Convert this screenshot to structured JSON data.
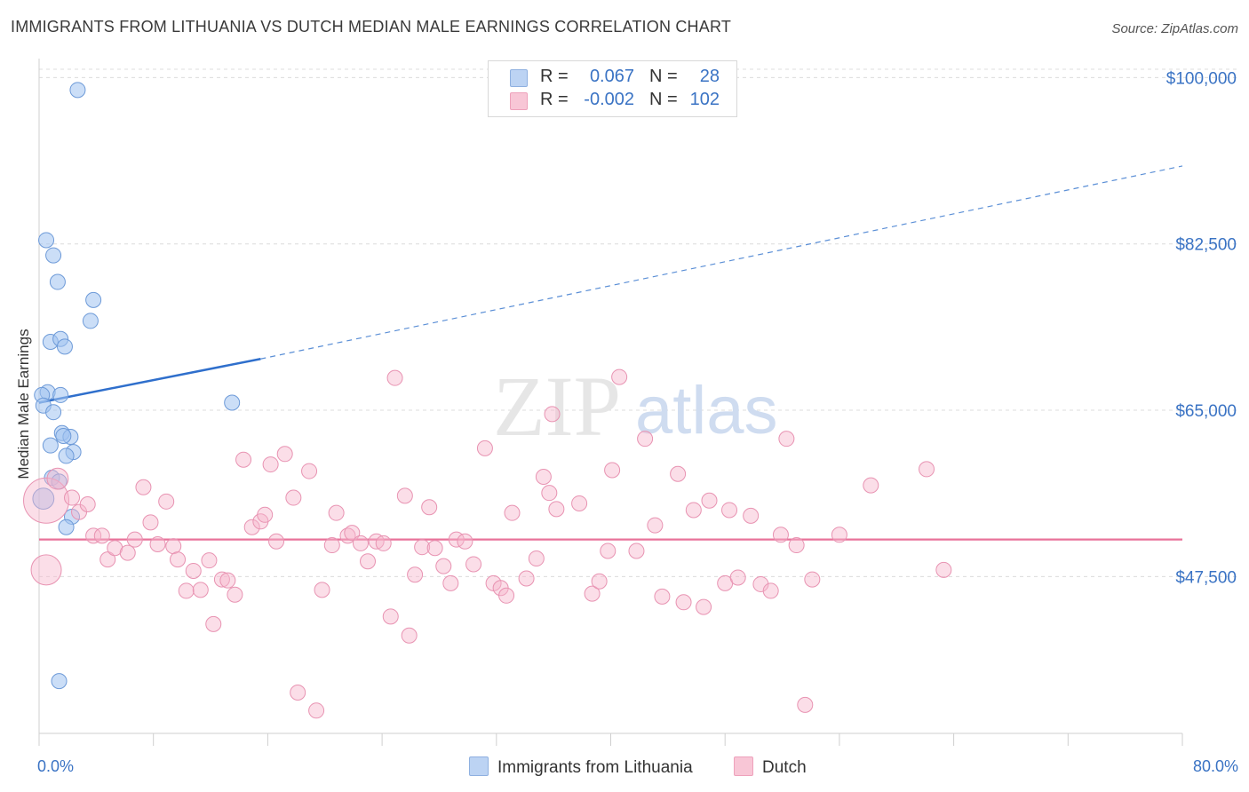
{
  "title": "IMMIGRANTS FROM LITHUANIA VS DUTCH MEDIAN MALE EARNINGS CORRELATION CHART",
  "source": "Source: ZipAtlas.com",
  "watermark": {
    "zip": "ZIP",
    "atlas": "atlas"
  },
  "legend": {
    "rows": [
      {
        "r_label": "R =",
        "r_value": "0.067",
        "n_label": "N =",
        "n_value": "28",
        "color": "#5b8fd6"
      },
      {
        "r_label": "R =",
        "r_value": "-0.002",
        "n_label": "N =",
        "n_value": "102",
        "color": "#e87aa0"
      }
    ]
  },
  "bottom_legend": [
    {
      "label": "Immigrants from Lithuania",
      "color": "#5b8fd6"
    },
    {
      "label": "Dutch",
      "color": "#e87aa0"
    }
  ],
  "chart_data": {
    "type": "scatter",
    "title": "IMMIGRANTS FROM LITHUANIA VS DUTCH MEDIAN MALE EARNINGS CORRELATION CHART",
    "xlabel": "",
    "ylabel": "Median Male Earnings",
    "xlim": [
      0,
      80
    ],
    "ylim": [
      31000,
      102000
    ],
    "x_tick_labels": [
      "0.0%",
      "80.0%"
    ],
    "y_ticks": [
      47500,
      65000,
      82500,
      100000
    ],
    "y_tick_labels": [
      "$47,500",
      "$65,000",
      "$82,500",
      "$100,000"
    ],
    "grid": true,
    "legend_position": "top-center",
    "series": [
      {
        "name": "Immigrants from Lithuania",
        "color": "#5b8fd6",
        "trend": {
          "x": [
            0,
            15.5
          ],
          "y": [
            65800,
            70400
          ],
          "dashed_extension_to": [
            80,
            90700
          ]
        },
        "points": [
          [
            2.7,
            98700,
            1
          ],
          [
            0.5,
            82900,
            1
          ],
          [
            1.0,
            81300,
            1
          ],
          [
            1.3,
            78500,
            1
          ],
          [
            3.8,
            76600,
            1
          ],
          [
            3.6,
            74400,
            1
          ],
          [
            0.8,
            72200,
            1
          ],
          [
            1.5,
            72500,
            1
          ],
          [
            1.8,
            71700,
            1
          ],
          [
            0.6,
            66900,
            1
          ],
          [
            1.5,
            66600,
            1
          ],
          [
            0.2,
            66600,
            1
          ],
          [
            0.3,
            65500,
            1
          ],
          [
            1.0,
            64800,
            1
          ],
          [
            13.5,
            65800,
            1
          ],
          [
            1.6,
            62600,
            1
          ],
          [
            2.2,
            62200,
            1
          ],
          [
            1.7,
            62300,
            1
          ],
          [
            0.8,
            61300,
            1
          ],
          [
            2.4,
            60600,
            1
          ],
          [
            1.9,
            60200,
            1
          ],
          [
            0.9,
            57900,
            1
          ],
          [
            1.4,
            57500,
            1
          ],
          [
            0.3,
            55700,
            1.4
          ],
          [
            2.3,
            53800,
            1
          ],
          [
            1.9,
            52700,
            1
          ],
          [
            1.4,
            36500,
            1
          ]
        ]
      },
      {
        "name": "Dutch",
        "color": "#e87aa0",
        "trend": {
          "x": [
            0,
            80
          ],
          "y": [
            51400,
            51400
          ]
        },
        "points": [
          [
            0.5,
            55500,
            3
          ],
          [
            0.5,
            48200,
            2
          ],
          [
            1.3,
            57800,
            1.4
          ],
          [
            2.3,
            55800,
            1
          ],
          [
            2.8,
            54300,
            1
          ],
          [
            3.4,
            55100,
            1
          ],
          [
            3.8,
            51800,
            1
          ],
          [
            4.4,
            51800,
            1
          ],
          [
            4.8,
            49300,
            1
          ],
          [
            5.3,
            50500,
            1
          ],
          [
            6.2,
            50000,
            1
          ],
          [
            6.7,
            51400,
            1
          ],
          [
            7.3,
            56900,
            1
          ],
          [
            7.8,
            53200,
            1
          ],
          [
            8.3,
            50900,
            1
          ],
          [
            8.9,
            55400,
            1
          ],
          [
            9.4,
            50700,
            1
          ],
          [
            9.7,
            49300,
            1
          ],
          [
            10.3,
            46000,
            1
          ],
          [
            10.8,
            48100,
            1
          ],
          [
            11.3,
            46100,
            1
          ],
          [
            11.9,
            49200,
            1
          ],
          [
            12.2,
            42500,
            1
          ],
          [
            12.8,
            47200,
            1
          ],
          [
            13.2,
            47100,
            1
          ],
          [
            13.7,
            45600,
            1
          ],
          [
            14.3,
            59800,
            1
          ],
          [
            14.9,
            52700,
            1
          ],
          [
            15.5,
            53300,
            1
          ],
          [
            15.8,
            54000,
            1
          ],
          [
            16.2,
            59300,
            1
          ],
          [
            16.6,
            51200,
            1
          ],
          [
            17.2,
            60400,
            1
          ],
          [
            17.8,
            55800,
            1
          ],
          [
            18.1,
            35300,
            1
          ],
          [
            18.9,
            58600,
            1
          ],
          [
            19.4,
            33400,
            1
          ],
          [
            19.8,
            46100,
            1
          ],
          [
            20.5,
            50800,
            1
          ],
          [
            20.8,
            54200,
            1
          ],
          [
            21.6,
            51800,
            1
          ],
          [
            21.9,
            52100,
            1
          ],
          [
            22.5,
            51000,
            1
          ],
          [
            23.0,
            49100,
            1
          ],
          [
            23.6,
            51200,
            1
          ],
          [
            24.1,
            51000,
            1
          ],
          [
            24.6,
            43300,
            1
          ],
          [
            24.9,
            68400,
            1
          ],
          [
            25.6,
            56000,
            1
          ],
          [
            25.9,
            41300,
            1
          ],
          [
            26.3,
            47700,
            1
          ],
          [
            26.8,
            50600,
            1
          ],
          [
            27.3,
            54800,
            1
          ],
          [
            27.7,
            50500,
            1
          ],
          [
            28.3,
            48600,
            1
          ],
          [
            28.8,
            46800,
            1
          ],
          [
            29.2,
            51400,
            1
          ],
          [
            29.8,
            51200,
            1
          ],
          [
            30.4,
            48800,
            1
          ],
          [
            31.2,
            61000,
            1
          ],
          [
            31.8,
            46800,
            1
          ],
          [
            32.3,
            46300,
            1
          ],
          [
            32.7,
            45500,
            1
          ],
          [
            33.1,
            54200,
            1
          ],
          [
            34.1,
            47300,
            1
          ],
          [
            34.8,
            49400,
            1
          ],
          [
            35.3,
            58000,
            1
          ],
          [
            35.7,
            56300,
            1
          ],
          [
            35.9,
            64600,
            1
          ],
          [
            36.2,
            54600,
            1
          ],
          [
            37.8,
            55200,
            1
          ],
          [
            38.7,
            45700,
            1
          ],
          [
            39.2,
            47000,
            1
          ],
          [
            39.8,
            50200,
            1
          ],
          [
            40.1,
            58700,
            1
          ],
          [
            40.6,
            68500,
            1
          ],
          [
            41.8,
            50200,
            1
          ],
          [
            42.4,
            62000,
            1
          ],
          [
            43.1,
            52900,
            1
          ],
          [
            43.6,
            45400,
            1
          ],
          [
            44.7,
            58300,
            1
          ],
          [
            45.1,
            44800,
            1
          ],
          [
            45.8,
            54500,
            1
          ],
          [
            46.5,
            44300,
            1
          ],
          [
            46.9,
            55500,
            1
          ],
          [
            48.0,
            46800,
            1
          ],
          [
            48.3,
            54500,
            1
          ],
          [
            48.9,
            47400,
            1
          ],
          [
            49.8,
            53900,
            1
          ],
          [
            50.5,
            46700,
            1
          ],
          [
            51.2,
            46000,
            1
          ],
          [
            51.9,
            51900,
            1
          ],
          [
            52.3,
            62000,
            1
          ],
          [
            53.0,
            50800,
            1
          ],
          [
            53.6,
            34000,
            1
          ],
          [
            54.1,
            47200,
            1
          ],
          [
            56.0,
            51900,
            1
          ],
          [
            58.2,
            57100,
            1
          ],
          [
            62.1,
            58800,
            1
          ],
          [
            63.3,
            48200,
            1
          ]
        ]
      }
    ]
  }
}
